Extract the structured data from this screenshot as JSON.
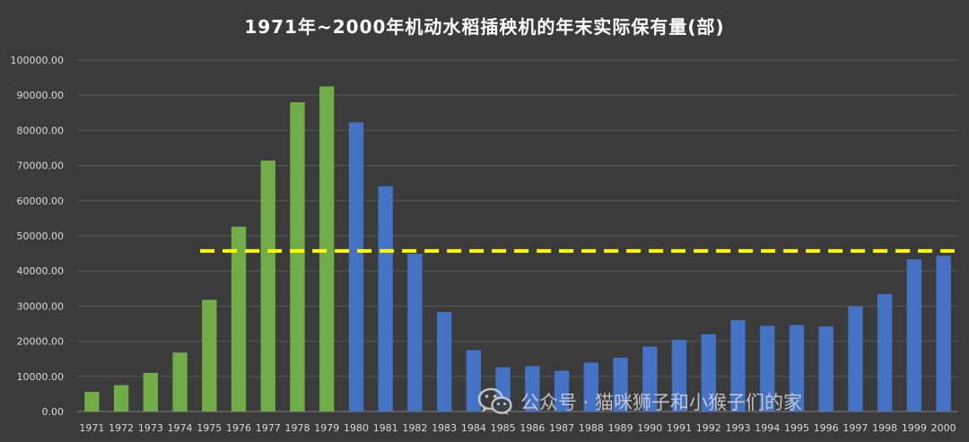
{
  "chart_data": {
    "type": "bar",
    "title": "1971年~2000年机动水稻插秧机的年末实际保有量(部)",
    "xlabel": "",
    "ylabel": "",
    "ylim": [
      0,
      100000
    ],
    "yticks": [
      "0.00",
      "10000.00",
      "20000.00",
      "30000.00",
      "40000.00",
      "50000.00",
      "60000.00",
      "70000.00",
      "80000.00",
      "90000.00",
      "100000.00"
    ],
    "grid": true,
    "categories": [
      "1971",
      "1972",
      "1973",
      "1974",
      "1975",
      "1976",
      "1977",
      "1978",
      "1979",
      "1980",
      "1981",
      "1982",
      "1983",
      "1984",
      "1985",
      "1986",
      "1987",
      "1988",
      "1989",
      "1990",
      "1991",
      "1992",
      "1993",
      "1994",
      "1995",
      "1996",
      "1997",
      "1998",
      "1999",
      "2000"
    ],
    "values": [
      5600,
      7500,
      11000,
      16800,
      31800,
      52600,
      71400,
      88000,
      92500,
      82300,
      64100,
      44900,
      28300,
      17500,
      12600,
      12900,
      11600,
      13900,
      15300,
      18500,
      20400,
      22000,
      26000,
      24400,
      24600,
      24200,
      29900,
      33400,
      43300,
      44300
    ],
    "bar_colors": [
      "#70ad47",
      "#70ad47",
      "#70ad47",
      "#70ad47",
      "#70ad47",
      "#70ad47",
      "#70ad47",
      "#70ad47",
      "#70ad47",
      "#4472c4",
      "#4472c4",
      "#4472c4",
      "#4472c4",
      "#4472c4",
      "#4472c4",
      "#4472c4",
      "#4472c4",
      "#4472c4",
      "#4472c4",
      "#4472c4",
      "#4472c4",
      "#4472c4",
      "#4472c4",
      "#4472c4",
      "#4472c4",
      "#4472c4",
      "#4472c4",
      "#4472c4",
      "#4472c4",
      "#4472c4"
    ],
    "reference_line": {
      "value": 45700,
      "from_category": "1975",
      "to_category": "2000",
      "color": "#ffff00",
      "style": "dashed"
    }
  },
  "colors": {
    "background": "#3b3b3b",
    "grid": "#595959",
    "axis_text": "#d9d9d9"
  },
  "watermark": {
    "icon": "wechat-icon",
    "text": "公众号 · 猫咪狮子和小猴子们的家"
  }
}
